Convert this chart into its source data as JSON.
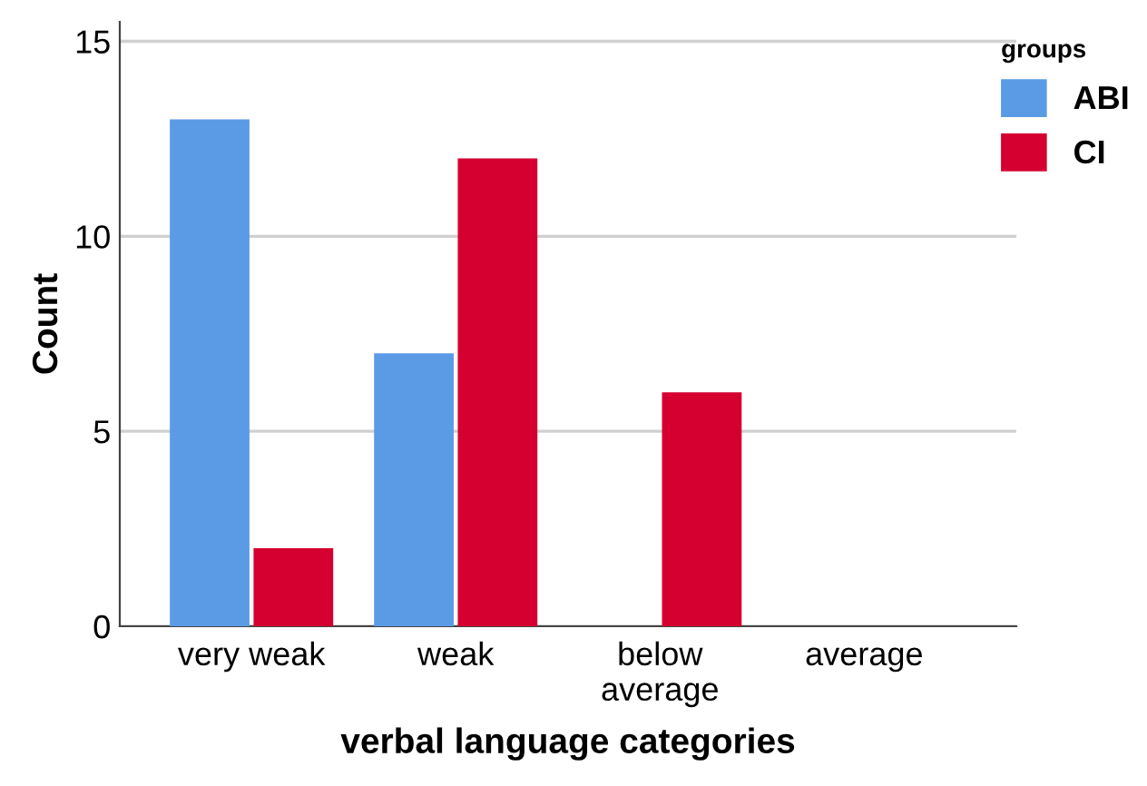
{
  "chart_data": {
    "type": "bar",
    "xlabel": "verbal language categories",
    "ylabel": "Count",
    "legend_title": "groups",
    "categories": [
      "very weak",
      "weak",
      "below\naverage",
      "average"
    ],
    "series": [
      {
        "name": "ABI",
        "color": "#5b9be6",
        "values": [
          13,
          7,
          0,
          0
        ]
      },
      {
        "name": "CI",
        "color": "#d5002f",
        "values": [
          2,
          12,
          6,
          0
        ]
      }
    ],
    "ylim": [
      0,
      15.5
    ],
    "yticks": [
      0,
      5,
      10,
      15
    ],
    "grid": "y",
    "legend": "top right"
  }
}
